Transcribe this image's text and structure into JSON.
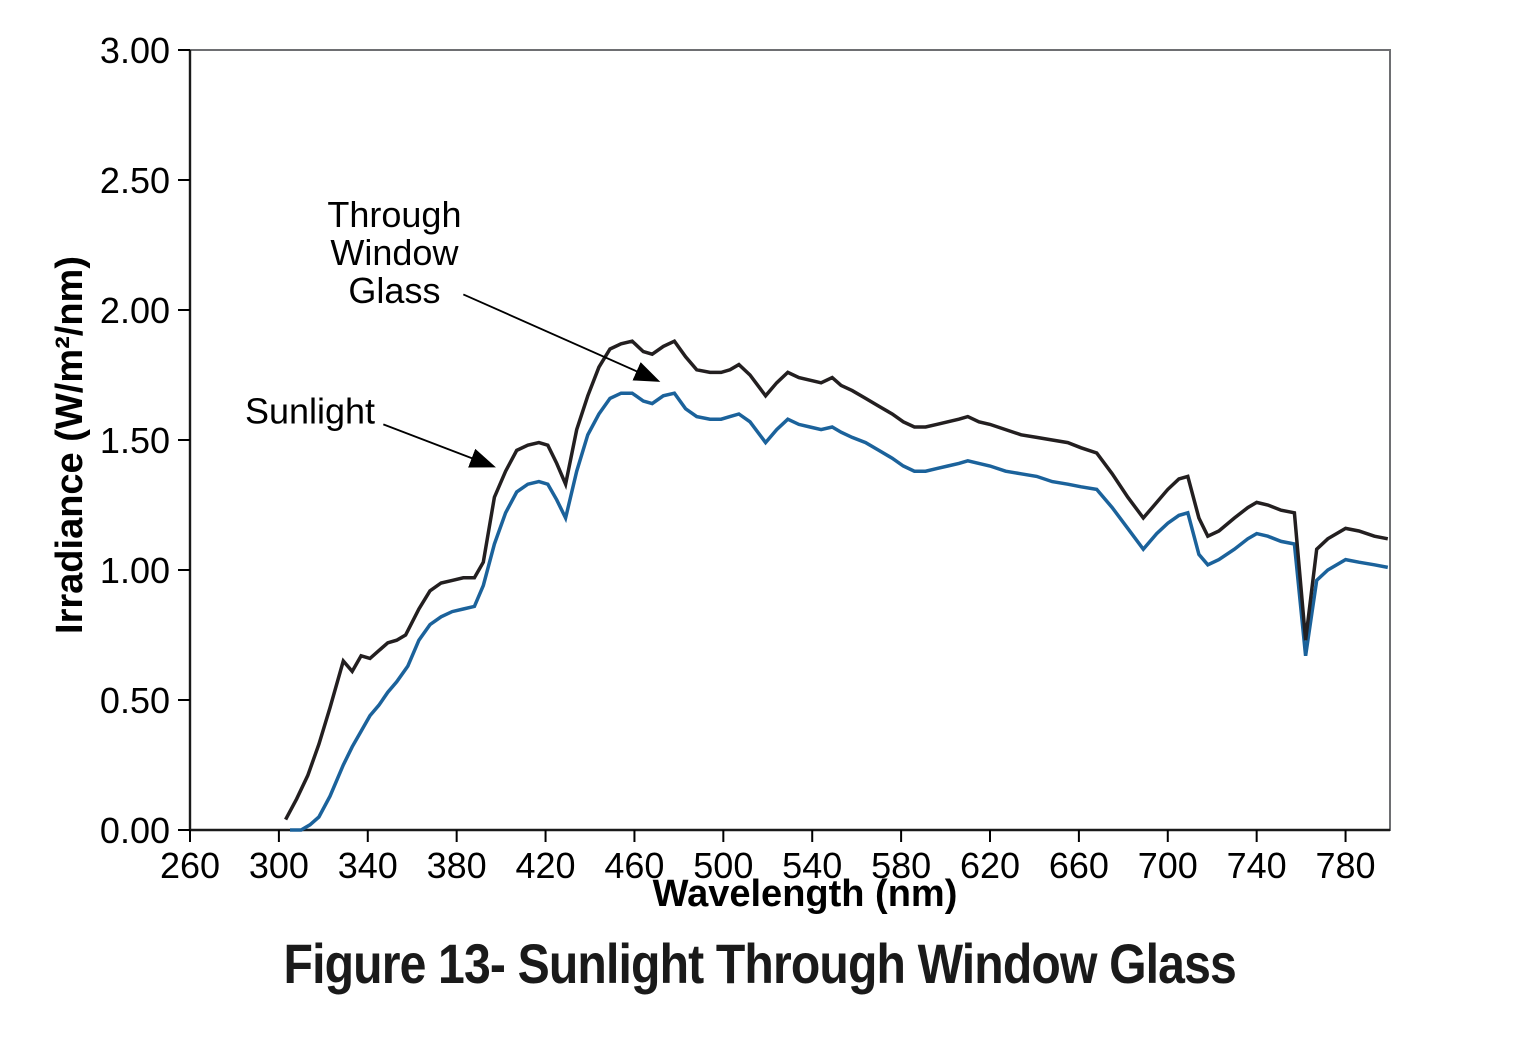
{
  "figure": {
    "caption": "Figure 13- Sunlight Through Window Glass"
  },
  "chart_data": {
    "type": "line",
    "title": "",
    "xlabel": "Wavelength (nm)",
    "ylabel": "Irradiance (W/m²/nm)",
    "xlim": [
      260,
      800
    ],
    "ylim": [
      0,
      3
    ],
    "x_ticks": [
      260,
      300,
      340,
      380,
      420,
      460,
      500,
      540,
      580,
      620,
      660,
      700,
      740,
      780
    ],
    "y_ticks": [
      0.0,
      0.5,
      1.0,
      1.5,
      2.0,
      2.5,
      3.0
    ],
    "y_tick_decimals": 2,
    "grid": false,
    "legend_position": "none",
    "frame_color": "#6E6F72",
    "axis_color": "#1A1A1A",
    "tick_color": "#000000",
    "series": [
      {
        "name": "Through Window Glass",
        "color": "#1B629B",
        "points": [
          [
            305,
            0.0
          ],
          [
            310,
            0.0
          ],
          [
            314,
            0.02
          ],
          [
            318,
            0.05
          ],
          [
            323,
            0.13
          ],
          [
            329,
            0.25
          ],
          [
            333,
            0.32
          ],
          [
            337,
            0.38
          ],
          [
            341,
            0.44
          ],
          [
            345,
            0.48
          ],
          [
            349,
            0.53
          ],
          [
            353,
            0.57
          ],
          [
            358,
            0.63
          ],
          [
            363,
            0.73
          ],
          [
            368,
            0.79
          ],
          [
            373,
            0.82
          ],
          [
            378,
            0.84
          ],
          [
            383,
            0.85
          ],
          [
            388,
            0.86
          ],
          [
            392,
            0.94
          ],
          [
            397,
            1.1
          ],
          [
            402,
            1.22
          ],
          [
            407,
            1.3
          ],
          [
            412,
            1.33
          ],
          [
            417,
            1.34
          ],
          [
            421,
            1.33
          ],
          [
            425,
            1.27
          ],
          [
            429,
            1.2
          ],
          [
            434,
            1.38
          ],
          [
            439,
            1.52
          ],
          [
            444,
            1.6
          ],
          [
            449,
            1.66
          ],
          [
            454,
            1.68
          ],
          [
            459,
            1.68
          ],
          [
            464,
            1.65
          ],
          [
            468,
            1.64
          ],
          [
            473,
            1.67
          ],
          [
            478,
            1.68
          ],
          [
            483,
            1.62
          ],
          [
            488,
            1.59
          ],
          [
            494,
            1.58
          ],
          [
            499,
            1.58
          ],
          [
            503,
            1.59
          ],
          [
            507,
            1.6
          ],
          [
            512,
            1.57
          ],
          [
            519,
            1.49
          ],
          [
            524,
            1.54
          ],
          [
            529,
            1.58
          ],
          [
            534,
            1.56
          ],
          [
            539,
            1.55
          ],
          [
            544,
            1.54
          ],
          [
            549,
            1.55
          ],
          [
            553,
            1.53
          ],
          [
            558,
            1.51
          ],
          [
            564,
            1.49
          ],
          [
            570,
            1.46
          ],
          [
            576,
            1.43
          ],
          [
            581,
            1.4
          ],
          [
            586,
            1.38
          ],
          [
            591,
            1.38
          ],
          [
            596,
            1.39
          ],
          [
            601,
            1.4
          ],
          [
            606,
            1.41
          ],
          [
            610,
            1.42
          ],
          [
            615,
            1.41
          ],
          [
            620,
            1.4
          ],
          [
            627,
            1.38
          ],
          [
            634,
            1.37
          ],
          [
            641,
            1.36
          ],
          [
            648,
            1.34
          ],
          [
            655,
            1.33
          ],
          [
            661,
            1.32
          ],
          [
            668,
            1.31
          ],
          [
            675,
            1.24
          ],
          [
            682,
            1.16
          ],
          [
            689,
            1.08
          ],
          [
            695,
            1.14
          ],
          [
            700,
            1.18
          ],
          [
            705,
            1.21
          ],
          [
            709,
            1.22
          ],
          [
            714,
            1.06
          ],
          [
            718,
            1.02
          ],
          [
            723,
            1.04
          ],
          [
            730,
            1.08
          ],
          [
            736,
            1.12
          ],
          [
            740,
            1.14
          ],
          [
            745,
            1.13
          ],
          [
            751,
            1.11
          ],
          [
            757,
            1.1
          ],
          [
            762,
            0.67
          ],
          [
            767,
            0.96
          ],
          [
            772,
            1.0
          ],
          [
            780,
            1.04
          ],
          [
            786,
            1.03
          ],
          [
            793,
            1.02
          ],
          [
            799,
            1.01
          ]
        ]
      },
      {
        "name": "Sunlight",
        "color": "#231F20",
        "points": [
          [
            303,
            0.04
          ],
          [
            308,
            0.12
          ],
          [
            313,
            0.21
          ],
          [
            318,
            0.33
          ],
          [
            323,
            0.47
          ],
          [
            329,
            0.65
          ],
          [
            333,
            0.61
          ],
          [
            337,
            0.67
          ],
          [
            341,
            0.66
          ],
          [
            345,
            0.69
          ],
          [
            349,
            0.72
          ],
          [
            353,
            0.73
          ],
          [
            357,
            0.75
          ],
          [
            363,
            0.85
          ],
          [
            368,
            0.92
          ],
          [
            373,
            0.95
          ],
          [
            378,
            0.96
          ],
          [
            383,
            0.97
          ],
          [
            388,
            0.97
          ],
          [
            392,
            1.03
          ],
          [
            397,
            1.28
          ],
          [
            402,
            1.38
          ],
          [
            407,
            1.46
          ],
          [
            412,
            1.48
          ],
          [
            417,
            1.49
          ],
          [
            421,
            1.48
          ],
          [
            425,
            1.41
          ],
          [
            429,
            1.33
          ],
          [
            434,
            1.54
          ],
          [
            439,
            1.67
          ],
          [
            444,
            1.78
          ],
          [
            449,
            1.85
          ],
          [
            454,
            1.87
          ],
          [
            459,
            1.88
          ],
          [
            464,
            1.84
          ],
          [
            468,
            1.83
          ],
          [
            473,
            1.86
          ],
          [
            478,
            1.88
          ],
          [
            483,
            1.82
          ],
          [
            488,
            1.77
          ],
          [
            494,
            1.76
          ],
          [
            499,
            1.76
          ],
          [
            503,
            1.77
          ],
          [
            507,
            1.79
          ],
          [
            512,
            1.75
          ],
          [
            519,
            1.67
          ],
          [
            524,
            1.72
          ],
          [
            529,
            1.76
          ],
          [
            534,
            1.74
          ],
          [
            539,
            1.73
          ],
          [
            544,
            1.72
          ],
          [
            549,
            1.74
          ],
          [
            553,
            1.71
          ],
          [
            558,
            1.69
          ],
          [
            564,
            1.66
          ],
          [
            570,
            1.63
          ],
          [
            576,
            1.6
          ],
          [
            581,
            1.57
          ],
          [
            586,
            1.55
          ],
          [
            591,
            1.55
          ],
          [
            596,
            1.56
          ],
          [
            601,
            1.57
          ],
          [
            606,
            1.58
          ],
          [
            610,
            1.59
          ],
          [
            615,
            1.57
          ],
          [
            620,
            1.56
          ],
          [
            627,
            1.54
          ],
          [
            634,
            1.52
          ],
          [
            641,
            1.51
          ],
          [
            648,
            1.5
          ],
          [
            655,
            1.49
          ],
          [
            661,
            1.47
          ],
          [
            668,
            1.45
          ],
          [
            675,
            1.37
          ],
          [
            682,
            1.28
          ],
          [
            689,
            1.2
          ],
          [
            695,
            1.26
          ],
          [
            700,
            1.31
          ],
          [
            705,
            1.35
          ],
          [
            709,
            1.36
          ],
          [
            714,
            1.2
          ],
          [
            718,
            1.13
          ],
          [
            723,
            1.15
          ],
          [
            730,
            1.2
          ],
          [
            736,
            1.24
          ],
          [
            740,
            1.26
          ],
          [
            745,
            1.25
          ],
          [
            751,
            1.23
          ],
          [
            757,
            1.22
          ],
          [
            762,
            0.73
          ],
          [
            767,
            1.08
          ],
          [
            772,
            1.12
          ],
          [
            780,
            1.16
          ],
          [
            786,
            1.15
          ],
          [
            793,
            1.13
          ],
          [
            799,
            1.12
          ]
        ]
      }
    ],
    "annotations": [
      {
        "id": "through-window-glass",
        "lines": [
          "Through",
          "Window",
          "Glass"
        ],
        "target_series": "Through Window Glass",
        "text_x": 352,
        "text_y": 2.22,
        "arrow_from_x": 383,
        "arrow_from_y": 2.06,
        "arrow_to_x": 470,
        "arrow_to_y": 1.73
      },
      {
        "id": "sunlight",
        "lines": [
          "Sunlight"
        ],
        "target_series": "Sunlight",
        "text_x": 314,
        "text_y": 1.61,
        "arrow_from_x": 347,
        "arrow_from_y": 1.56,
        "arrow_to_x": 396,
        "arrow_to_y": 1.4
      }
    ]
  }
}
